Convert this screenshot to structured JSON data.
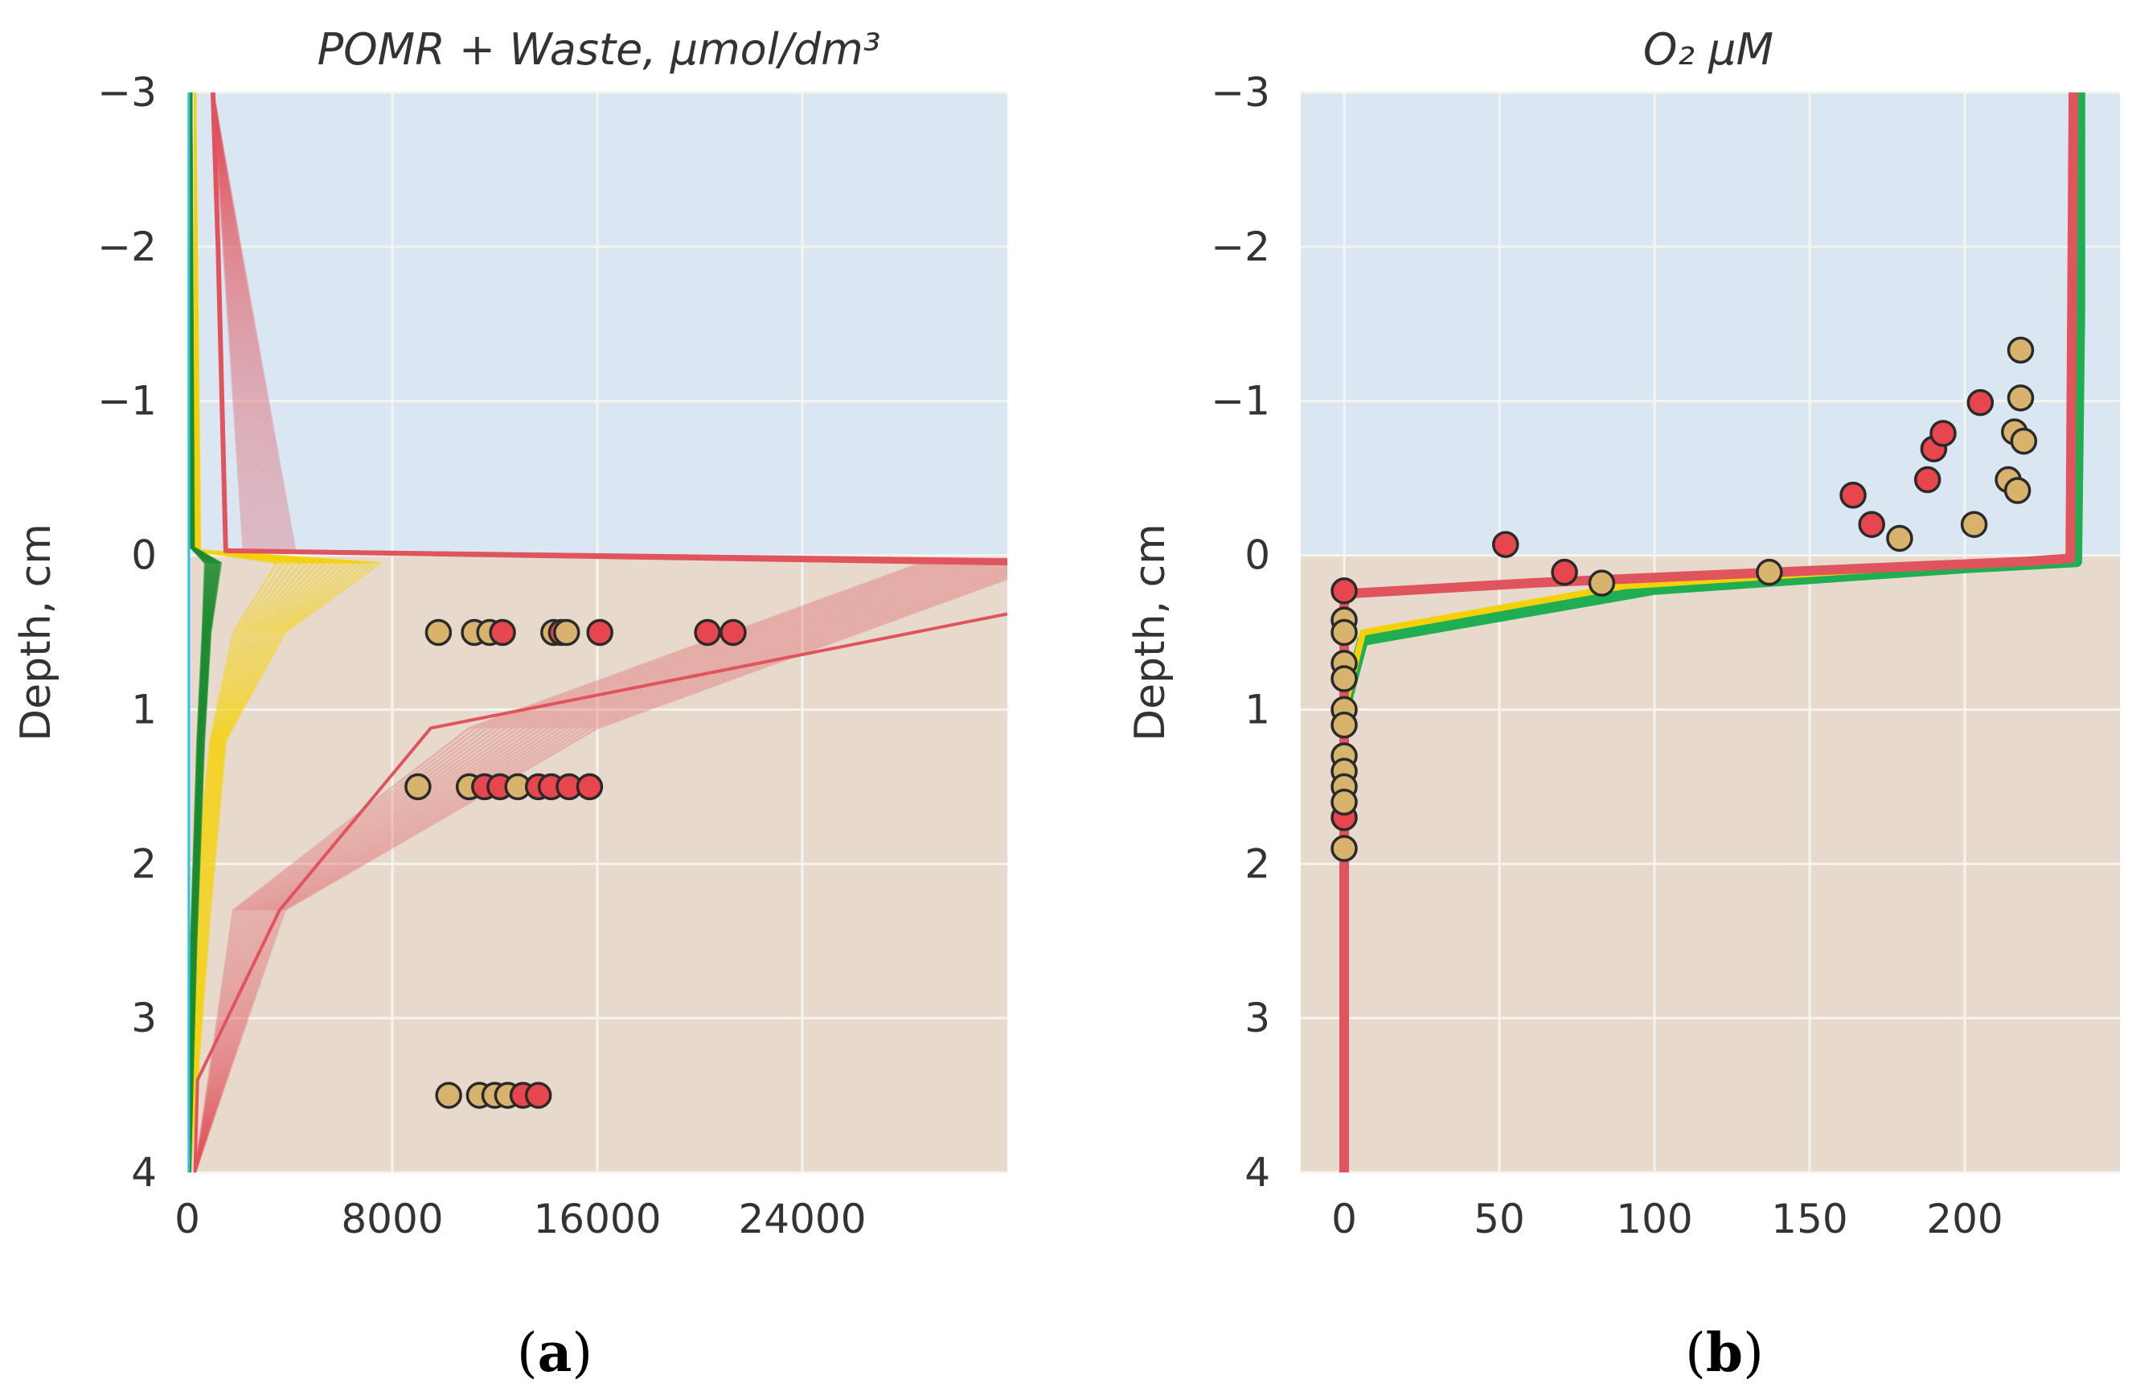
{
  "colors": {
    "water": "#dae7f2",
    "sediment": "#e7dacd",
    "grid": "#f4f4f0",
    "red": "#e0545e",
    "red_light": "#e8a2a5",
    "yellow": "#f5d10a",
    "green": "#1b8a2e",
    "green_bright": "#1fae52",
    "cyan": "#2bc0ea",
    "obs_red": "#e8464f",
    "obs_tan": "#d8b36e",
    "marker_edge": "#2a2a2a"
  },
  "chart_data": [
    {
      "id": "a",
      "type": "line",
      "title": "POMR  +  Waste,  μmol/dm³",
      "caption_letter": "a",
      "ylabel": "Depth, cm",
      "xlim": [
        0,
        32000
      ],
      "ylim": [
        -3,
        4
      ],
      "y_inverted": true,
      "sediment_interface_depth": 0,
      "xticks": [
        0,
        8000,
        16000,
        24000
      ],
      "xtick_labels": [
        "0",
        "8000",
        "16000",
        "24000"
      ],
      "yticks": [
        -3,
        -2,
        -1,
        0,
        1,
        2,
        3,
        4
      ],
      "ytick_labels": [
        "−3",
        "−2",
        "−1",
        "0",
        "1",
        "2",
        "3",
        "4"
      ],
      "grid": true,
      "model_bundles": [
        {
          "color_key": "red",
          "count": 22,
          "depth": [
            -3,
            -0.03,
            0.03,
            1.12,
            2.3,
            4
          ],
          "x_start": [
            1000,
            2200,
            29000,
            11000,
            1800,
            300
          ],
          "x_end": [
            1000,
            4200,
            34000,
            16000,
            3800,
            300
          ],
          "opacity": 0.3
        },
        {
          "color_key": "red",
          "count": 1,
          "depth": [
            0.5,
            0.4
          ],
          "x_start": [
            28000,
            32000
          ],
          "x_end": [
            28000,
            32000
          ],
          "opacity": 0.0
        },
        {
          "color_key": "yellow",
          "count": 18,
          "depth": [
            -3,
            -0.03,
            0.05,
            0.5,
            1.2,
            2.3,
            4
          ],
          "x_start": [
            300,
            300,
            3500,
            1800,
            900,
            200,
            100
          ],
          "x_end": [
            300,
            500,
            7500,
            3800,
            1500,
            900,
            100
          ],
          "opacity": 0.5
        },
        {
          "color_key": "green",
          "count": 12,
          "depth": [
            -3,
            -0.05,
            0.05,
            0.5,
            1.2,
            2.5,
            4
          ],
          "x_start": [
            150,
            150,
            700,
            600,
            400,
            150,
            100
          ],
          "x_end": [
            150,
            250,
            1300,
            900,
            650,
            350,
            100
          ],
          "opacity": 0.7
        },
        {
          "color_key": "cyan",
          "count": 1,
          "depth": [
            -3,
            4
          ],
          "x_start": [
            60,
            60
          ],
          "x_end": [
            60,
            60
          ],
          "opacity": 1
        }
      ],
      "model_lines": [
        {
          "color_key": "red",
          "x": [
            1000,
            1200,
            1500,
            32000,
            33500
          ],
          "y": [
            -3,
            -2.0,
            -0.03,
            0.05,
            0.07
          ],
          "width": 6
        },
        {
          "color_key": "red",
          "x": [
            32000,
            9500,
            3600,
            400,
            300
          ],
          "y": [
            0.38,
            1.12,
            2.3,
            3.4,
            4
          ],
          "width": 4
        }
      ],
      "observations": [
        {
          "x": 9800,
          "y": 0.5,
          "c": "obs_tan"
        },
        {
          "x": 11200,
          "y": 0.5,
          "c": "obs_tan"
        },
        {
          "x": 11800,
          "y": 0.5,
          "c": "obs_tan"
        },
        {
          "x": 12300,
          "y": 0.5,
          "c": "obs_red"
        },
        {
          "x": 14300,
          "y": 0.5,
          "c": "obs_tan"
        },
        {
          "x": 14600,
          "y": 0.5,
          "c": "obs_red"
        },
        {
          "x": 14800,
          "y": 0.5,
          "c": "obs_tan"
        },
        {
          "x": 16100,
          "y": 0.5,
          "c": "obs_red"
        },
        {
          "x": 20300,
          "y": 0.5,
          "c": "obs_red"
        },
        {
          "x": 21300,
          "y": 0.5,
          "c": "obs_red"
        },
        {
          "x": 9000,
          "y": 1.5,
          "c": "obs_tan"
        },
        {
          "x": 11000,
          "y": 1.5,
          "c": "obs_tan"
        },
        {
          "x": 11600,
          "y": 1.5,
          "c": "obs_red"
        },
        {
          "x": 12200,
          "y": 1.5,
          "c": "obs_red"
        },
        {
          "x": 12900,
          "y": 1.5,
          "c": "obs_tan"
        },
        {
          "x": 13700,
          "y": 1.5,
          "c": "obs_red"
        },
        {
          "x": 14200,
          "y": 1.5,
          "c": "obs_red"
        },
        {
          "x": 14900,
          "y": 1.5,
          "c": "obs_red"
        },
        {
          "x": 15700,
          "y": 1.5,
          "c": "obs_red"
        },
        {
          "x": 10200,
          "y": 3.5,
          "c": "obs_tan"
        },
        {
          "x": 11400,
          "y": 3.5,
          "c": "obs_tan"
        },
        {
          "x": 12000,
          "y": 3.5,
          "c": "obs_tan"
        },
        {
          "x": 12500,
          "y": 3.5,
          "c": "obs_tan"
        },
        {
          "x": 13100,
          "y": 3.5,
          "c": "obs_red"
        },
        {
          "x": 13700,
          "y": 3.5,
          "c": "obs_red"
        }
      ]
    },
    {
      "id": "b",
      "type": "line",
      "title": "O₂ μM",
      "caption_letter": "b",
      "ylabel": "Depth, cm",
      "xlim": [
        -14,
        250
      ],
      "ylim": [
        -3,
        4
      ],
      "y_inverted": true,
      "sediment_interface_depth": 0,
      "xticks": [
        0,
        50,
        100,
        150,
        200
      ],
      "xtick_labels": [
        "0",
        "50",
        "100",
        "150",
        "200"
      ],
      "yticks": [
        -3,
        -2,
        -1,
        0,
        1,
        2,
        3,
        4
      ],
      "ytick_labels": [
        "−3",
        "−2",
        "−1",
        "0",
        "1",
        "2",
        "3",
        "4"
      ],
      "grid": true,
      "model_bundles": [],
      "model_lines": [
        {
          "color_key": "green_bright",
          "x": [
            0,
            6,
            100,
            200,
            236,
            237,
            237
          ],
          "y": [
            1.0,
            0.55,
            0.22,
            0.08,
            0.04,
            -1.6,
            -3
          ],
          "width": 14
        },
        {
          "color_key": "yellow",
          "x": [
            0,
            6,
            90,
            180,
            234,
            235
          ],
          "y": [
            1.0,
            0.5,
            0.2,
            0.08,
            0.03,
            -3
          ],
          "width": 8
        },
        {
          "color_key": "red",
          "x": [
            0,
            0,
            0,
            60,
            150,
            220,
            234,
            235
          ],
          "y": [
            4,
            0.25,
            0.25,
            0.18,
            0.1,
            0.04,
            0.02,
            -3
          ],
          "width": 12
        }
      ],
      "observations": [
        {
          "x": 0,
          "y": 0.23,
          "c": "obs_red"
        },
        {
          "x": 0,
          "y": 0.42,
          "c": "obs_tan"
        },
        {
          "x": 0,
          "y": 0.5,
          "c": "obs_tan"
        },
        {
          "x": 0,
          "y": 0.7,
          "c": "obs_tan"
        },
        {
          "x": 0,
          "y": 0.8,
          "c": "obs_tan"
        },
        {
          "x": 0,
          "y": 1.0,
          "c": "obs_tan"
        },
        {
          "x": 0,
          "y": 1.1,
          "c": "obs_tan"
        },
        {
          "x": 0,
          "y": 1.3,
          "c": "obs_tan"
        },
        {
          "x": 0,
          "y": 1.4,
          "c": "obs_tan"
        },
        {
          "x": 0,
          "y": 1.5,
          "c": "obs_tan"
        },
        {
          "x": 0,
          "y": 1.7,
          "c": "obs_red"
        },
        {
          "x": 0,
          "y": 1.6,
          "c": "obs_tan"
        },
        {
          "x": 0,
          "y": 1.9,
          "c": "obs_tan"
        },
        {
          "x": 52,
          "y": -0.07,
          "c": "obs_red"
        },
        {
          "x": 71,
          "y": 0.11,
          "c": "obs_red"
        },
        {
          "x": 83,
          "y": 0.18,
          "c": "obs_tan"
        },
        {
          "x": 137,
          "y": 0.11,
          "c": "obs_tan"
        },
        {
          "x": 164,
          "y": -0.39,
          "c": "obs_red"
        },
        {
          "x": 170,
          "y": -0.2,
          "c": "obs_red"
        },
        {
          "x": 179,
          "y": -0.11,
          "c": "obs_tan"
        },
        {
          "x": 188,
          "y": -0.49,
          "c": "obs_red"
        },
        {
          "x": 190,
          "y": -0.69,
          "c": "obs_red"
        },
        {
          "x": 193,
          "y": -0.79,
          "c": "obs_red"
        },
        {
          "x": 203,
          "y": -0.2,
          "c": "obs_tan"
        },
        {
          "x": 205,
          "y": -0.99,
          "c": "obs_red"
        },
        {
          "x": 214,
          "y": -0.49,
          "c": "obs_tan"
        },
        {
          "x": 216,
          "y": -0.8,
          "c": "obs_tan"
        },
        {
          "x": 217,
          "y": -0.42,
          "c": "obs_tan"
        },
        {
          "x": 218,
          "y": -1.02,
          "c": "obs_tan"
        },
        {
          "x": 219,
          "y": -0.74,
          "c": "obs_tan"
        },
        {
          "x": 218,
          "y": -1.33,
          "c": "obs_tan"
        }
      ]
    }
  ]
}
